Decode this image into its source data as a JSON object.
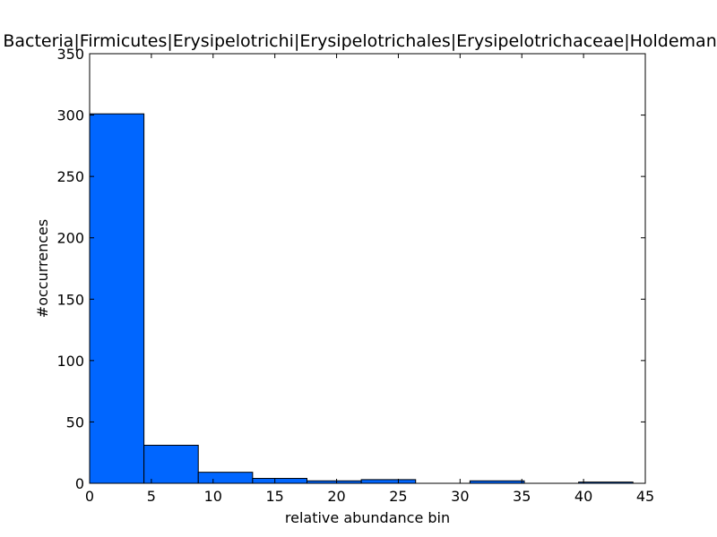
{
  "chart_data": {
    "type": "bar",
    "title": "Bacteria|Firmicutes|Erysipelotrichi|Erysipelotrichales|Erysipelotrichaceae|Holdemania",
    "xlabel": "relative abundance bin",
    "ylabel": "#occurrences",
    "xlim": [
      0,
      45
    ],
    "ylim": [
      0,
      350
    ],
    "xticks": [
      0,
      5,
      10,
      15,
      20,
      25,
      30,
      35,
      40,
      45
    ],
    "yticks": [
      0,
      50,
      100,
      150,
      200,
      250,
      300,
      350
    ],
    "bin_edges": [
      0,
      4.4,
      8.8,
      13.2,
      17.6,
      22.0,
      26.4,
      30.8,
      35.2,
      39.6,
      44.0
    ],
    "values": [
      301,
      31,
      9,
      4,
      2,
      3,
      0,
      2,
      0,
      1
    ],
    "bar_color": "#0066ff",
    "edge_color": "#000000",
    "grid": false
  }
}
